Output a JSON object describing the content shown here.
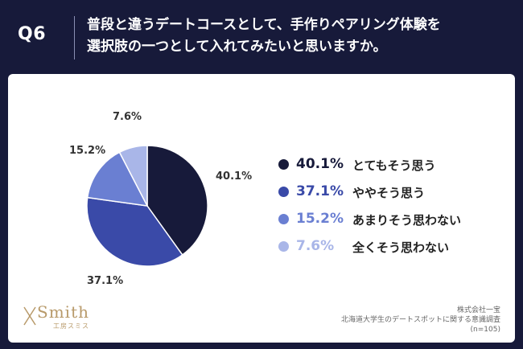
{
  "header": {
    "qnum": "Q6",
    "question_line1": "普段と違うデートコースとして、手作りペアリング体験を",
    "question_line2": "選択肢の一つとして入れてみたいと思いますか。"
  },
  "chart_data": {
    "type": "pie",
    "slices": [
      {
        "label": "とてもそう思う",
        "value": 40.1,
        "pct_text": "40.1%",
        "color": "#171a3a"
      },
      {
        "label": "ややそう思う",
        "value": 37.1,
        "pct_text": "37.1%",
        "color": "#3a4aa8"
      },
      {
        "label": "あまりそう思わない",
        "value": 15.2,
        "pct_text": "15.2%",
        "color": "#6a7fd2"
      },
      {
        "label": "全くそう思わない",
        "value": 7.6,
        "pct_text": "7.6%",
        "color": "#a9b6e8"
      }
    ],
    "start": "12 o'clock",
    "direction": "clockwise",
    "legend_position": "right"
  },
  "logo": {
    "main": "Smith",
    "sub": "工房スミス"
  },
  "source": {
    "company": "株式会社一宝",
    "survey": "北海道大学生のデートスポットに関する意識調査",
    "n": "(n=105)"
  }
}
